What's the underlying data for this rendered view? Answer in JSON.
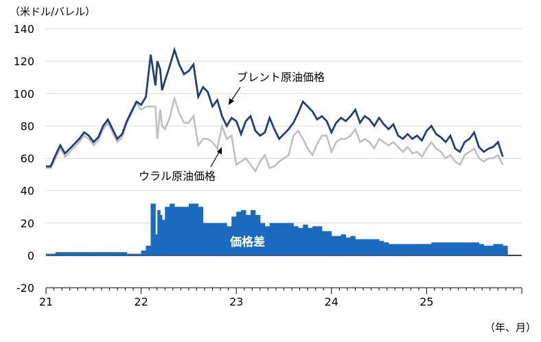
{
  "chart_data": {
    "type": "line",
    "y_unit": "（米ドル/バレル）",
    "x_unit": "（年、月）",
    "ylim": [
      -20,
      140
    ],
    "y_ticks": [
      140,
      120,
      100,
      80,
      60,
      40,
      20,
      0,
      -20
    ],
    "x_ticks": [
      "21",
      "22",
      "23",
      "24",
      "25"
    ],
    "grid": true,
    "series": [
      {
        "name": "ブレント原油価格",
        "color": "#1f3f7a",
        "x": [
          21.0,
          21.05,
          21.1,
          21.15,
          21.2,
          21.25,
          21.3,
          21.35,
          21.4,
          21.45,
          21.5,
          21.55,
          21.6,
          21.65,
          21.7,
          21.75,
          21.8,
          21.85,
          21.9,
          21.95,
          22.0,
          22.05,
          22.1,
          22.15,
          22.17,
          22.2,
          22.22,
          22.25,
          22.3,
          22.35,
          22.4,
          22.45,
          22.5,
          22.55,
          22.6,
          22.65,
          22.7,
          22.75,
          22.8,
          22.85,
          22.9,
          22.95,
          23.0,
          23.05,
          23.1,
          23.15,
          23.2,
          23.25,
          23.3,
          23.35,
          23.4,
          23.45,
          23.5,
          23.55,
          23.6,
          23.65,
          23.7,
          23.75,
          23.8,
          23.85,
          23.9,
          23.95,
          24.0,
          24.05,
          24.1,
          24.15,
          24.2,
          24.25,
          24.3,
          24.35,
          24.4,
          24.45,
          24.5,
          24.55,
          24.6,
          24.65,
          24.7,
          24.75,
          24.8,
          24.85,
          24.9,
          24.95,
          25.0,
          25.05,
          25.1,
          25.15,
          25.2,
          25.25,
          25.3,
          25.35,
          25.4,
          25.45,
          25.5,
          25.55,
          25.6,
          25.65,
          25.7,
          25.75,
          25.8
        ],
        "values": [
          55,
          55,
          62,
          68,
          63,
          66,
          69,
          72,
          76,
          74,
          70,
          73,
          80,
          84,
          78,
          72,
          75,
          83,
          89,
          95,
          93,
          98,
          124,
          105,
          120,
          115,
          102,
          108,
          117,
          127,
          118,
          112,
          114,
          118,
          98,
          104,
          101,
          92,
          96,
          86,
          80,
          85,
          83,
          75,
          83,
          86,
          77,
          74,
          76,
          85,
          78,
          72,
          75,
          78,
          82,
          88,
          95,
          92,
          89,
          84,
          86,
          83,
          76,
          82,
          85,
          83,
          86,
          90,
          82,
          86,
          84,
          80,
          85,
          81,
          78,
          81,
          74,
          72,
          75,
          72,
          74,
          71,
          77,
          80,
          75,
          73,
          70,
          74,
          66,
          64,
          70,
          72,
          76,
          67,
          64,
          66,
          67,
          70,
          61
        ]
      },
      {
        "name": "ウラル原油価格",
        "color": "#bfbfbf",
        "x": [
          21.0,
          21.05,
          21.1,
          21.15,
          21.2,
          21.25,
          21.3,
          21.35,
          21.4,
          21.45,
          21.5,
          21.55,
          21.6,
          21.65,
          21.7,
          21.75,
          21.8,
          21.85,
          21.9,
          21.95,
          22.0,
          22.05,
          22.1,
          22.15,
          22.17,
          22.2,
          22.22,
          22.25,
          22.3,
          22.35,
          22.4,
          22.45,
          22.5,
          22.55,
          22.6,
          22.65,
          22.7,
          22.75,
          22.8,
          22.85,
          22.9,
          22.95,
          23.0,
          23.05,
          23.1,
          23.15,
          23.2,
          23.25,
          23.3,
          23.35,
          23.4,
          23.45,
          23.5,
          23.55,
          23.6,
          23.65,
          23.7,
          23.75,
          23.8,
          23.85,
          23.9,
          23.95,
          24.0,
          24.05,
          24.1,
          24.15,
          24.2,
          24.25,
          24.3,
          24.35,
          24.4,
          24.45,
          24.5,
          24.55,
          24.6,
          24.65,
          24.7,
          24.75,
          24.8,
          24.85,
          24.9,
          24.95,
          25.0,
          25.05,
          25.1,
          25.15,
          25.2,
          25.25,
          25.3,
          25.35,
          25.4,
          25.45,
          25.5,
          25.55,
          25.6,
          25.65,
          25.7,
          25.75,
          25.8
        ],
        "values": [
          54,
          54,
          60,
          66,
          61,
          64,
          67,
          70,
          74,
          72,
          68,
          71,
          78,
          82,
          76,
          70,
          73,
          82,
          88,
          94,
          90,
          92,
          92,
          92,
          72,
          90,
          80,
          78,
          85,
          97,
          88,
          82,
          82,
          86,
          68,
          72,
          72,
          70,
          66,
          80,
          72,
          74,
          56,
          58,
          60,
          56,
          52,
          58,
          62,
          54,
          55,
          58,
          60,
          62,
          74,
          77,
          72,
          66,
          62,
          69,
          74,
          74,
          64,
          70,
          72,
          72,
          74,
          78,
          70,
          72,
          70,
          66,
          72,
          70,
          68,
          70,
          67,
          64,
          67,
          63,
          64,
          61,
          66,
          70,
          66,
          64,
          60,
          62,
          58,
          56,
          62,
          64,
          66,
          60,
          58,
          60,
          60,
          62,
          56
        ]
      },
      {
        "name": "価格差",
        "type": "bar",
        "color": "#1a6ac0",
        "x": [
          21.0,
          21.05,
          21.1,
          21.15,
          21.2,
          21.25,
          21.3,
          21.35,
          21.4,
          21.45,
          21.5,
          21.55,
          21.6,
          21.65,
          21.7,
          21.75,
          21.8,
          21.85,
          21.9,
          21.95,
          22.0,
          22.05,
          22.1,
          22.15,
          22.17,
          22.2,
          22.22,
          22.25,
          22.3,
          22.35,
          22.4,
          22.45,
          22.5,
          22.55,
          22.6,
          22.65,
          22.7,
          22.75,
          22.8,
          22.85,
          22.9,
          22.95,
          23.0,
          23.05,
          23.1,
          23.15,
          23.2,
          23.25,
          23.3,
          23.35,
          23.4,
          23.45,
          23.5,
          23.55,
          23.6,
          23.65,
          23.7,
          23.75,
          23.8,
          23.85,
          23.9,
          23.95,
          24.0,
          24.05,
          24.1,
          24.15,
          24.2,
          24.25,
          24.3,
          24.35,
          24.4,
          24.45,
          24.5,
          24.55,
          24.6,
          24.65,
          24.7,
          24.75,
          24.8,
          24.85,
          24.9,
          24.95,
          25.0,
          25.05,
          25.1,
          25.15,
          25.2,
          25.25,
          25.3,
          25.35,
          25.4,
          25.45,
          25.5,
          25.55,
          25.6,
          25.65,
          25.7,
          25.75,
          25.8
        ],
        "values": [
          1,
          1,
          2,
          2,
          2,
          2,
          2,
          2,
          2,
          2,
          2,
          2,
          2,
          2,
          2,
          2,
          2,
          1,
          1,
          1,
          3,
          6,
          32,
          13,
          28,
          25,
          22,
          30,
          32,
          30,
          30,
          30,
          32,
          32,
          30,
          20,
          20,
          20,
          20,
          20,
          18,
          24,
          27,
          28,
          25,
          28,
          25,
          20,
          18,
          20,
          20,
          20,
          20,
          20,
          18,
          17,
          19,
          17,
          18,
          18,
          15,
          15,
          12,
          12,
          13,
          11,
          12,
          10,
          10,
          10,
          10,
          10,
          9,
          8,
          7,
          7,
          7,
          7,
          7,
          7,
          7,
          7,
          7,
          8,
          8,
          8,
          8,
          8,
          8,
          8,
          8,
          8,
          8,
          7,
          6,
          6,
          7,
          7,
          6
        ]
      }
    ],
    "annotations": {
      "brent": "ブレント原油価格",
      "urals": "ウラル原油価格",
      "spread": "価格差"
    }
  }
}
